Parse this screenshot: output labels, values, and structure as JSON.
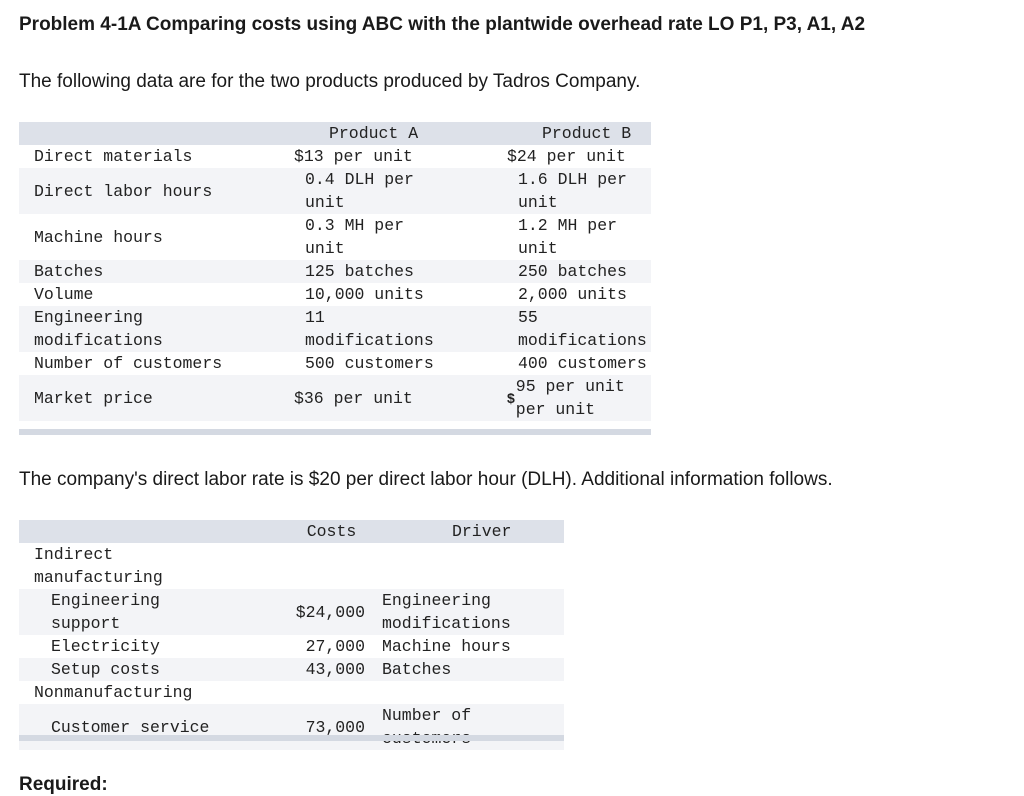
{
  "title": "Problem 4-1A Comparing costs using ABC with the plantwide overhead rate LO P1, P3, A1, A2",
  "intro": "The following data are for the two products produced by Tadros Company.",
  "products_table": {
    "headers": [
      "Product A",
      "Product B"
    ],
    "rows": [
      {
        "label": "Direct materials",
        "a": [
          "$13 per unit"
        ],
        "b": [
          "$24 per unit"
        ]
      },
      {
        "label": "Direct labor hours",
        "a": [
          "0.4 DLH per",
          "unit"
        ],
        "b": [
          "1.6 DLH per",
          "unit"
        ]
      },
      {
        "label": "Machine hours",
        "a": [
          "0.3 MH per",
          "unit"
        ],
        "b": [
          "1.2 MH per",
          "unit"
        ]
      },
      {
        "label": "Batches",
        "a": [
          "125 batches"
        ],
        "b": [
          "250 batches"
        ]
      },
      {
        "label": "Volume",
        "a": [
          "10,000 units"
        ],
        "b": [
          "2,000 units"
        ]
      },
      {
        "label": [
          "Engineering",
          "modifications"
        ],
        "a": [
          "11",
          "modifications"
        ],
        "b": [
          "55",
          "modifications"
        ]
      },
      {
        "label": "Number of customers",
        "a": [
          "500 customers"
        ],
        "b": [
          "400 customers"
        ]
      },
      {
        "label": "Market price",
        "a": [
          "$36 per unit"
        ],
        "b_prefix": "$",
        "b": [
          "95 per unit",
          "per unit"
        ]
      }
    ]
  },
  "labor_rate_text": "The company's direct labor rate is $20 per direct labor hour (DLH). Additional information follows.",
  "overhead_table": {
    "headers": [
      "Costs",
      "Driver"
    ],
    "section1": [
      "Indirect",
      "manufacturing"
    ],
    "rows": [
      {
        "label": [
          "Engineering",
          "support"
        ],
        "cost": "$24,000",
        "driver": [
          "Engineering",
          "modifications"
        ]
      },
      {
        "label": [
          "Electricity"
        ],
        "cost": "27,000",
        "driver": [
          "Machine hours"
        ]
      },
      {
        "label": [
          "Setup costs"
        ],
        "cost": "43,000",
        "driver": [
          "Batches"
        ]
      }
    ],
    "section2": "Nonmanufacturing",
    "row_cs": {
      "label": "Customer service",
      "cost": "73,000",
      "driver": "Number of customers"
    }
  },
  "required_label": "Required:"
}
